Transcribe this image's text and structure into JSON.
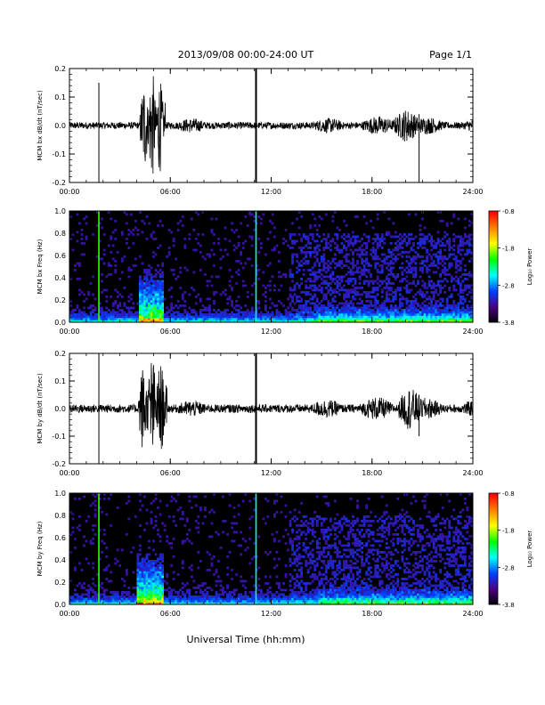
{
  "header": {
    "date_range": "2013/09/08  00:00-24:00 UT",
    "page": "Page 1/1"
  },
  "footer": {
    "xlabel": "Universal Time (hh:mm)"
  },
  "colors": {
    "trace": "#000000",
    "spectrogram_background": "#000000",
    "colorbar": [
      "#ff0000",
      "#ff8000",
      "#ffff00",
      "#00ff00",
      "#00ffff",
      "#0040ff",
      "#4b0082",
      "#000000"
    ]
  },
  "chart_data": [
    {
      "type": "line",
      "id": "bx-dbdt",
      "ylabel": "MCM bx dB/dt (nT/sec)",
      "xlim": [
        "00:00",
        "24:00"
      ],
      "ylim": [
        -0.2,
        0.2
      ],
      "xticks": [
        "00:00",
        "06:00",
        "12:00",
        "18:00",
        "24:00"
      ],
      "yticks": [
        "-0.2",
        "-0.1",
        "0.0",
        "0.1",
        "0.2"
      ],
      "baseline_amplitude": 0.012,
      "activity": [
        {
          "start": 4.2,
          "end": 5.7,
          "amplitude": 0.2,
          "label": "burst"
        },
        {
          "start": 6.4,
          "end": 9.5,
          "amplitude": 0.03,
          "label": "moderate"
        },
        {
          "start": 14.6,
          "end": 24.0,
          "amplitude": 0.035,
          "label": "afternoon"
        },
        {
          "start": 19.3,
          "end": 20.8,
          "amplitude": 0.06,
          "label": "evening"
        }
      ],
      "spikes": [
        {
          "t": 1.75,
          "top": 0.15,
          "bottom": -0.2
        },
        {
          "t": 11.1,
          "top": 0.2,
          "bottom": -0.2
        },
        {
          "t": 20.8,
          "top": 0.04,
          "bottom": -0.2
        }
      ]
    },
    {
      "type": "heatmap",
      "id": "bx-spectrogram",
      "ylabel": "MCM bx Freq (Hz)",
      "xlim": [
        "00:00",
        "24:00"
      ],
      "ylim": [
        0.0,
        1.0
      ],
      "xticks": [
        "00:00",
        "06:00",
        "12:00",
        "18:00",
        "24:00"
      ],
      "yticks": [
        "0.0",
        "0.2",
        "0.4",
        "0.6",
        "0.8",
        "1.0"
      ],
      "colorbar": {
        "label": "Log₁₀ Power",
        "ticks": [
          "-0.8",
          "-1.8",
          "-2.8",
          "-3.8"
        ],
        "range": [
          -3.8,
          -0.8
        ]
      },
      "lines": [
        {
          "t": 1.75,
          "level": 0.6
        },
        {
          "t": 11.1,
          "level": 0.45
        }
      ],
      "enhanced_intervals": [
        {
          "start": 4.1,
          "end": 5.6,
          "level": 0.5
        },
        {
          "start": 14.8,
          "end": 24.0,
          "level": 0.15
        }
      ]
    },
    {
      "type": "line",
      "id": "by-dbdt",
      "ylabel": "MCM by dB/dt (nT/sec)",
      "xlim": [
        "00:00",
        "24:00"
      ],
      "ylim": [
        -0.2,
        0.2
      ],
      "xticks": [
        "00:00",
        "06:00",
        "12:00",
        "18:00",
        "24:00"
      ],
      "yticks": [
        "-0.2",
        "-0.1",
        "0.0",
        "0.1",
        "0.2"
      ],
      "baseline_amplitude": 0.015,
      "activity": [
        {
          "start": 4.1,
          "end": 5.8,
          "amplitude": 0.2,
          "label": "burst"
        },
        {
          "start": 6.4,
          "end": 9.5,
          "amplitude": 0.035,
          "label": "moderate"
        },
        {
          "start": 14.5,
          "end": 24.0,
          "amplitude": 0.045,
          "label": "afternoon"
        },
        {
          "start": 19.6,
          "end": 20.8,
          "amplitude": 0.08,
          "label": "evening"
        }
      ],
      "spikes": [
        {
          "t": 1.75,
          "top": 0.2,
          "bottom": -0.2
        },
        {
          "t": 11.1,
          "top": 0.2,
          "bottom": -0.2
        },
        {
          "t": 20.8,
          "top": 0.05,
          "bottom": -0.1
        }
      ]
    },
    {
      "type": "heatmap",
      "id": "by-spectrogram",
      "ylabel": "MCM by Freq (Hz)",
      "xlim": [
        "00:00",
        "24:00"
      ],
      "ylim": [
        0.0,
        1.0
      ],
      "xticks": [
        "00:00",
        "06:00",
        "12:00",
        "18:00",
        "24:00"
      ],
      "yticks": [
        "0.0",
        "0.2",
        "0.4",
        "0.6",
        "0.8",
        "1.0"
      ],
      "colorbar": {
        "label": "Log₁₀ Power",
        "ticks": [
          "-0.8",
          "-1.8",
          "-2.8",
          "-3.8"
        ],
        "range": [
          -3.8,
          -0.8
        ]
      },
      "lines": [
        {
          "t": 1.75,
          "level": 0.6
        },
        {
          "t": 11.1,
          "level": 0.45
        }
      ],
      "enhanced_intervals": [
        {
          "start": 4.0,
          "end": 5.6,
          "level": 0.5
        },
        {
          "start": 14.8,
          "end": 24.0,
          "level": 0.15
        }
      ]
    }
  ]
}
